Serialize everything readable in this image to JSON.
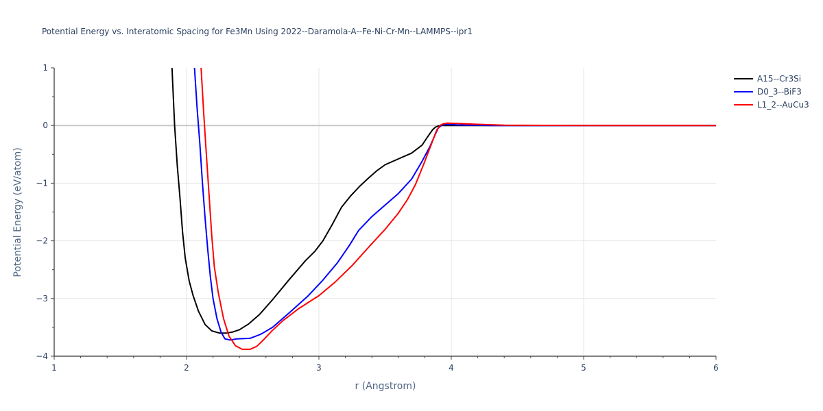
{
  "chart_data": {
    "type": "line",
    "title": "Potential Energy vs. Interatomic Spacing for Fe3Mn Using 2022--Daramola-A--Fe-Ni-Cr-Mn--LAMMPS--ipr1",
    "xlabel": "r (Angstrom)",
    "ylabel": "Potential Energy (eV/atom)",
    "xlim": [
      1,
      6
    ],
    "ylim": [
      -4,
      1
    ],
    "xticks": [
      1,
      2,
      3,
      4,
      5,
      6
    ],
    "yticks": [
      1,
      0,
      -1,
      -2,
      -3,
      -4
    ],
    "ytick_labels": [
      "1",
      "0",
      "−1",
      "−2",
      "−3",
      "−4"
    ],
    "grid": true,
    "legend_position": "top-right",
    "series": [
      {
        "name": "A15--Cr3Si",
        "color": "#000000",
        "x": [
          1.89,
          1.91,
          1.93,
          1.95,
          1.97,
          1.99,
          2.02,
          2.05,
          2.09,
          2.14,
          2.19,
          2.25,
          2.3,
          2.35,
          2.4,
          2.47,
          2.55,
          2.65,
          2.78,
          2.9,
          2.97,
          3.03,
          3.1,
          3.17,
          3.24,
          3.31,
          3.38,
          3.44,
          3.5,
          3.6,
          3.7,
          3.78,
          3.82,
          3.86,
          3.88,
          3.9,
          3.92,
          3.95,
          4.0,
          4.2,
          4.5,
          5.0,
          5.5,
          6.0
        ],
        "y": [
          1.0,
          0.0,
          -0.7,
          -1.25,
          -1.85,
          -2.3,
          -2.7,
          -2.95,
          -3.22,
          -3.45,
          -3.56,
          -3.6,
          -3.6,
          -3.58,
          -3.54,
          -3.44,
          -3.28,
          -3.02,
          -2.66,
          -2.34,
          -2.18,
          -2.0,
          -1.72,
          -1.42,
          -1.22,
          -1.05,
          -0.9,
          -0.78,
          -0.68,
          -0.58,
          -0.48,
          -0.34,
          -0.2,
          -0.07,
          -0.03,
          -0.01,
          0.0,
          0.0,
          0.0,
          0.0,
          0.0,
          0.0,
          0.0,
          0.0
        ]
      },
      {
        "name": "D0_3--BiF3",
        "color": "#0000ff",
        "x": [
          2.06,
          2.08,
          2.1,
          2.12,
          2.14,
          2.16,
          2.18,
          2.2,
          2.23,
          2.26,
          2.29,
          2.33,
          2.38,
          2.48,
          2.56,
          2.65,
          2.78,
          2.92,
          3.03,
          3.14,
          3.23,
          3.3,
          3.4,
          3.5,
          3.6,
          3.7,
          3.78,
          3.84,
          3.88,
          3.9,
          3.93,
          3.97,
          4.05,
          4.3,
          5.0,
          6.0
        ],
        "y": [
          1.0,
          0.3,
          -0.3,
          -1.0,
          -1.6,
          -2.15,
          -2.62,
          -3.0,
          -3.35,
          -3.58,
          -3.7,
          -3.72,
          -3.7,
          -3.69,
          -3.62,
          -3.5,
          -3.24,
          -2.95,
          -2.68,
          -2.38,
          -2.08,
          -1.82,
          -1.58,
          -1.38,
          -1.18,
          -0.93,
          -0.62,
          -0.36,
          -0.15,
          -0.05,
          0.01,
          0.02,
          0.01,
          0.0,
          0.0,
          0.0
        ]
      },
      {
        "name": "L1_2--AuCu3",
        "color": "#ff0000",
        "x": [
          2.11,
          2.13,
          2.15,
          2.17,
          2.19,
          2.21,
          2.24,
          2.28,
          2.32,
          2.37,
          2.42,
          2.48,
          2.53,
          2.58,
          2.65,
          2.73,
          2.85,
          3.0,
          3.12,
          3.25,
          3.38,
          3.5,
          3.6,
          3.67,
          3.73,
          3.79,
          3.85,
          3.89,
          3.92,
          3.94,
          3.97,
          4.05,
          4.2,
          4.4,
          5.0,
          6.0
        ],
        "y": [
          1.0,
          0.2,
          -0.5,
          -1.2,
          -1.9,
          -2.45,
          -2.9,
          -3.35,
          -3.65,
          -3.82,
          -3.88,
          -3.88,
          -3.83,
          -3.72,
          -3.55,
          -3.38,
          -3.17,
          -2.95,
          -2.72,
          -2.43,
          -2.1,
          -1.8,
          -1.52,
          -1.28,
          -1.02,
          -0.68,
          -0.32,
          -0.08,
          0.01,
          0.03,
          0.04,
          0.035,
          0.02,
          0.005,
          0.0,
          0.0
        ]
      }
    ]
  }
}
